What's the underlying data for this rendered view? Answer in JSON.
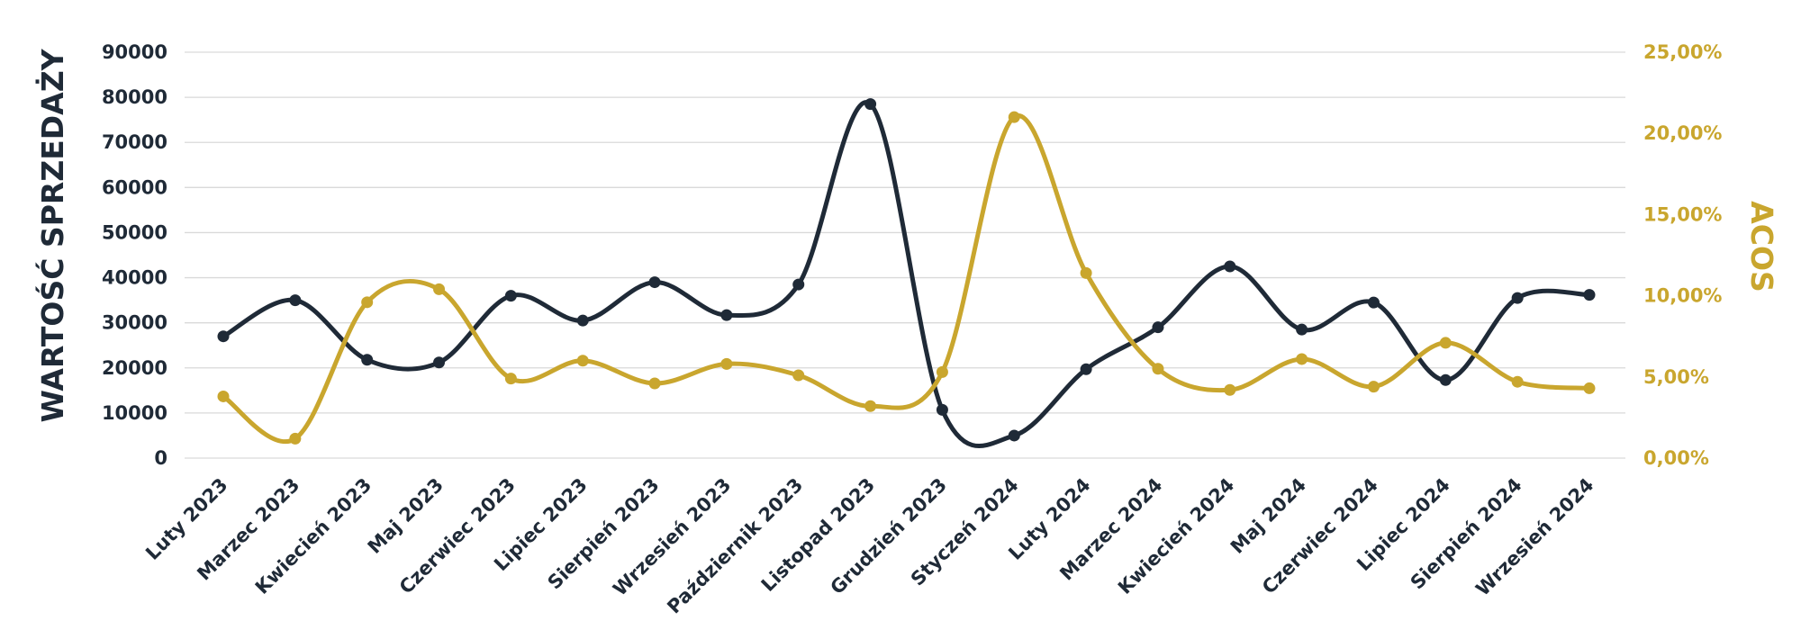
{
  "chart_data": {
    "type": "line",
    "categories": [
      "Luty 2023",
      "Marzec 2023",
      "Kwiecień 2023",
      "Maj 2023",
      "Czerwiec 2023",
      "Lipiec 2023",
      "Sierpień 2023",
      "Wrzesień 2023",
      "Październik 2023",
      "Listopad 2023",
      "Grudzień 2023",
      "Styczeń 2024",
      "Luty 2024",
      "Marzec 2024",
      "Kwiecień 2024",
      "Maj 2024",
      "Czerwiec 2024",
      "Lipiec 2024",
      "Sierpień 2024",
      "Wrzesień 2024"
    ],
    "ylabel": "WARTOŚĆ SPRZEDAŻY",
    "y2label": "ACOS",
    "ylim": [
      0,
      90000
    ],
    "y2lim": [
      0,
      25
    ],
    "yticks": [
      "0",
      "10000",
      "20000",
      "30000",
      "40000",
      "50000",
      "60000",
      "70000",
      "80000",
      "90000"
    ],
    "y2ticks": [
      "0,00%",
      "5,00%",
      "10,00%",
      "15,00%",
      "20,00%",
      "25,00%"
    ],
    "grid": true,
    "legend": "none",
    "series": [
      {
        "axis": "left",
        "color": "#1f2a37",
        "values": [
          27000,
          35000,
          21800,
          21200,
          36000,
          30500,
          39000,
          31700,
          38500,
          78500,
          10700,
          5000,
          19700,
          29000,
          42500,
          28500,
          34500,
          17300,
          35500,
          36200
        ]
      },
      {
        "axis": "right",
        "color": "#c9a62e",
        "values": [
          3.8,
          1.2,
          9.6,
          10.4,
          4.9,
          6.0,
          4.6,
          5.8,
          5.1,
          3.2,
          5.3,
          21.0,
          11.4,
          5.5,
          4.2,
          6.1,
          4.4,
          7.1,
          4.7,
          4.3
        ]
      }
    ]
  }
}
